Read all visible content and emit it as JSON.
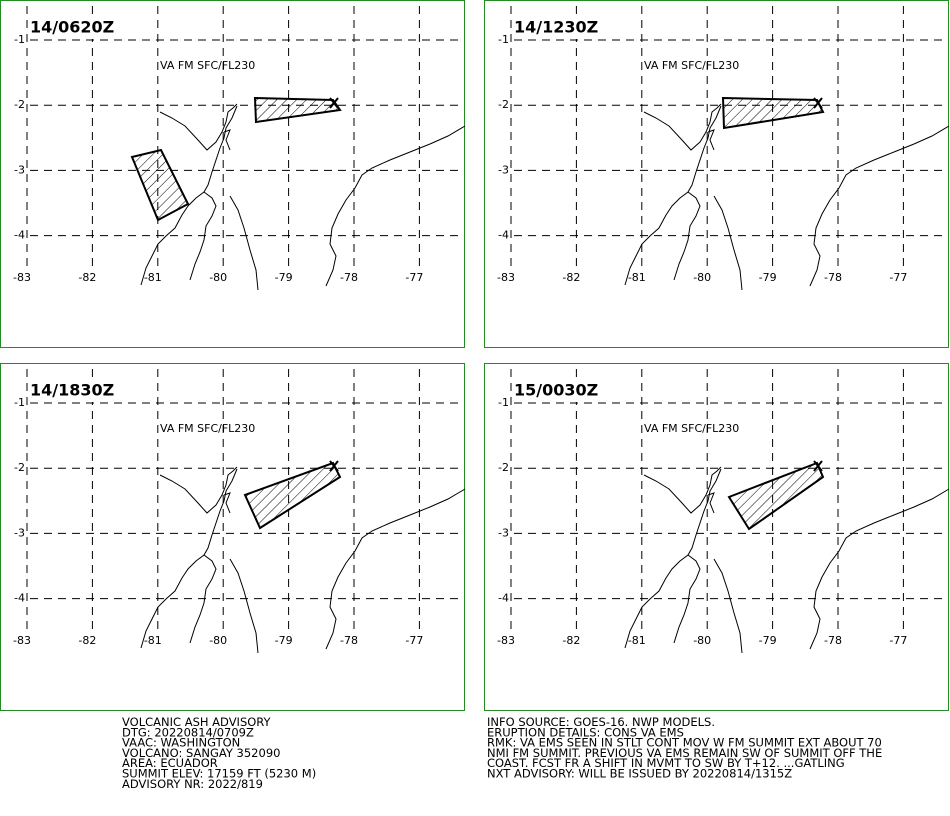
{
  "map": {
    "lat_ticks": [
      -1,
      -2,
      -3,
      -4
    ],
    "lon_ticks": [
      -83,
      -82,
      -81,
      -80,
      -79,
      -78,
      -77
    ]
  },
  "panels": [
    {
      "title": "14/0620Z",
      "label": "VA FM SFC/FL230"
    },
    {
      "title": "14/1230Z",
      "label": "VA FM SFC/FL230"
    },
    {
      "title": "14/1830Z",
      "label": "VA FM SFC/FL230"
    },
    {
      "title": "15/0030Z",
      "label": "VA FM SFC/FL230"
    }
  ],
  "advisory": {
    "left": [
      "VOLCANIC ASH ADVISORY",
      "DTG: 20220814/0709Z",
      "VAAC: WASHINGTON",
      "VOLCANO: SANGAY 352090",
      "AREA: ECUADOR",
      "SUMMIT ELEV: 17159 FT (5230 M)",
      "ADVISORY NR: 2022/819"
    ],
    "right": [
      "INFO SOURCE: GOES-16. NWP MODELS.",
      "ERUPTION DETAILS: CONS VA EMS",
      "RMK: VA EMS SEEN IN STLT CONT MOV W FM SUMMIT EXT ABOUT 70",
      "NMI FM SUMMIT. PREVIOUS VA EMS REMAIN SW OF SUMMIT OFF THE",
      "COAST. FCST FR A SHIFT IN MVMT TO SW BY T+12. ...GATLING",
      "NXT ADVISORY: WILL BE ISSUED BY 20220814/1315Z"
    ]
  }
}
